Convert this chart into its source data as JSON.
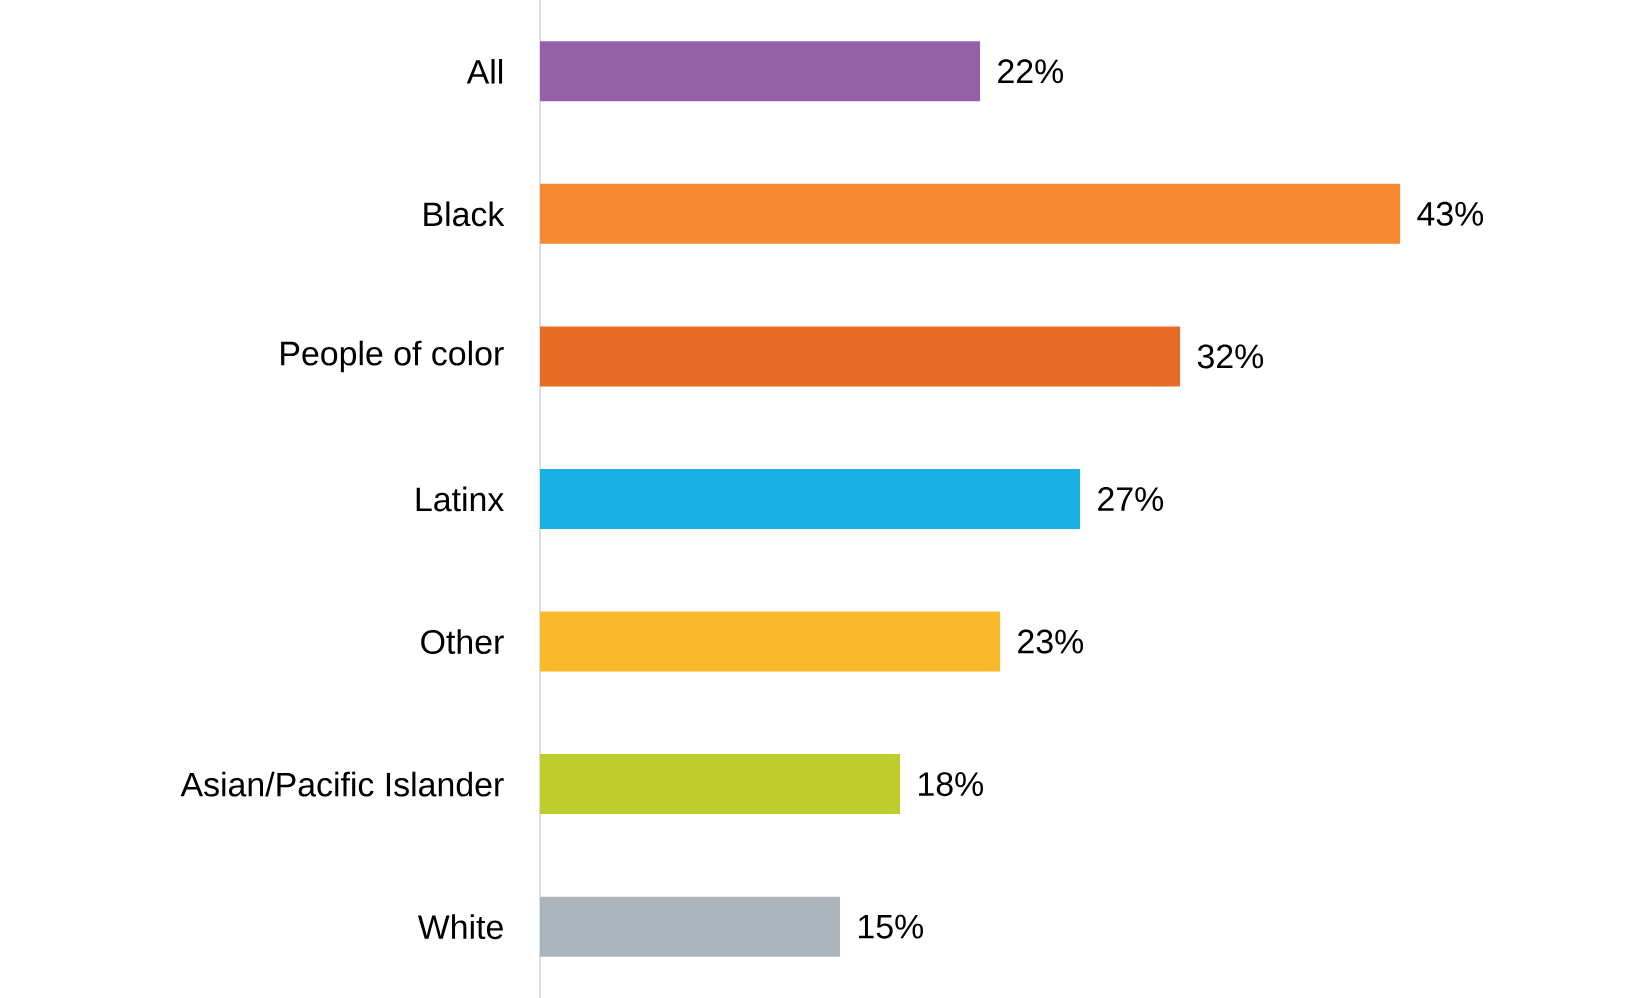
{
  "chart_data": {
    "type": "bar",
    "orientation": "horizontal",
    "categories": [
      "All",
      "Black",
      "People of color",
      "Latinx",
      "Other",
      "Asian/Pacific Islander",
      "White"
    ],
    "values": [
      22,
      43,
      32,
      27,
      23,
      18,
      15
    ],
    "colors": [
      "#9461a6",
      "#f58a33",
      "#e66c25",
      "#1ab2e6",
      "#f9b92b",
      "#bfcd2c",
      "#abb5bb"
    ],
    "value_labels": [
      "22%",
      "43%",
      "32%",
      "27%",
      "23%",
      "18%",
      "15%"
    ]
  }
}
